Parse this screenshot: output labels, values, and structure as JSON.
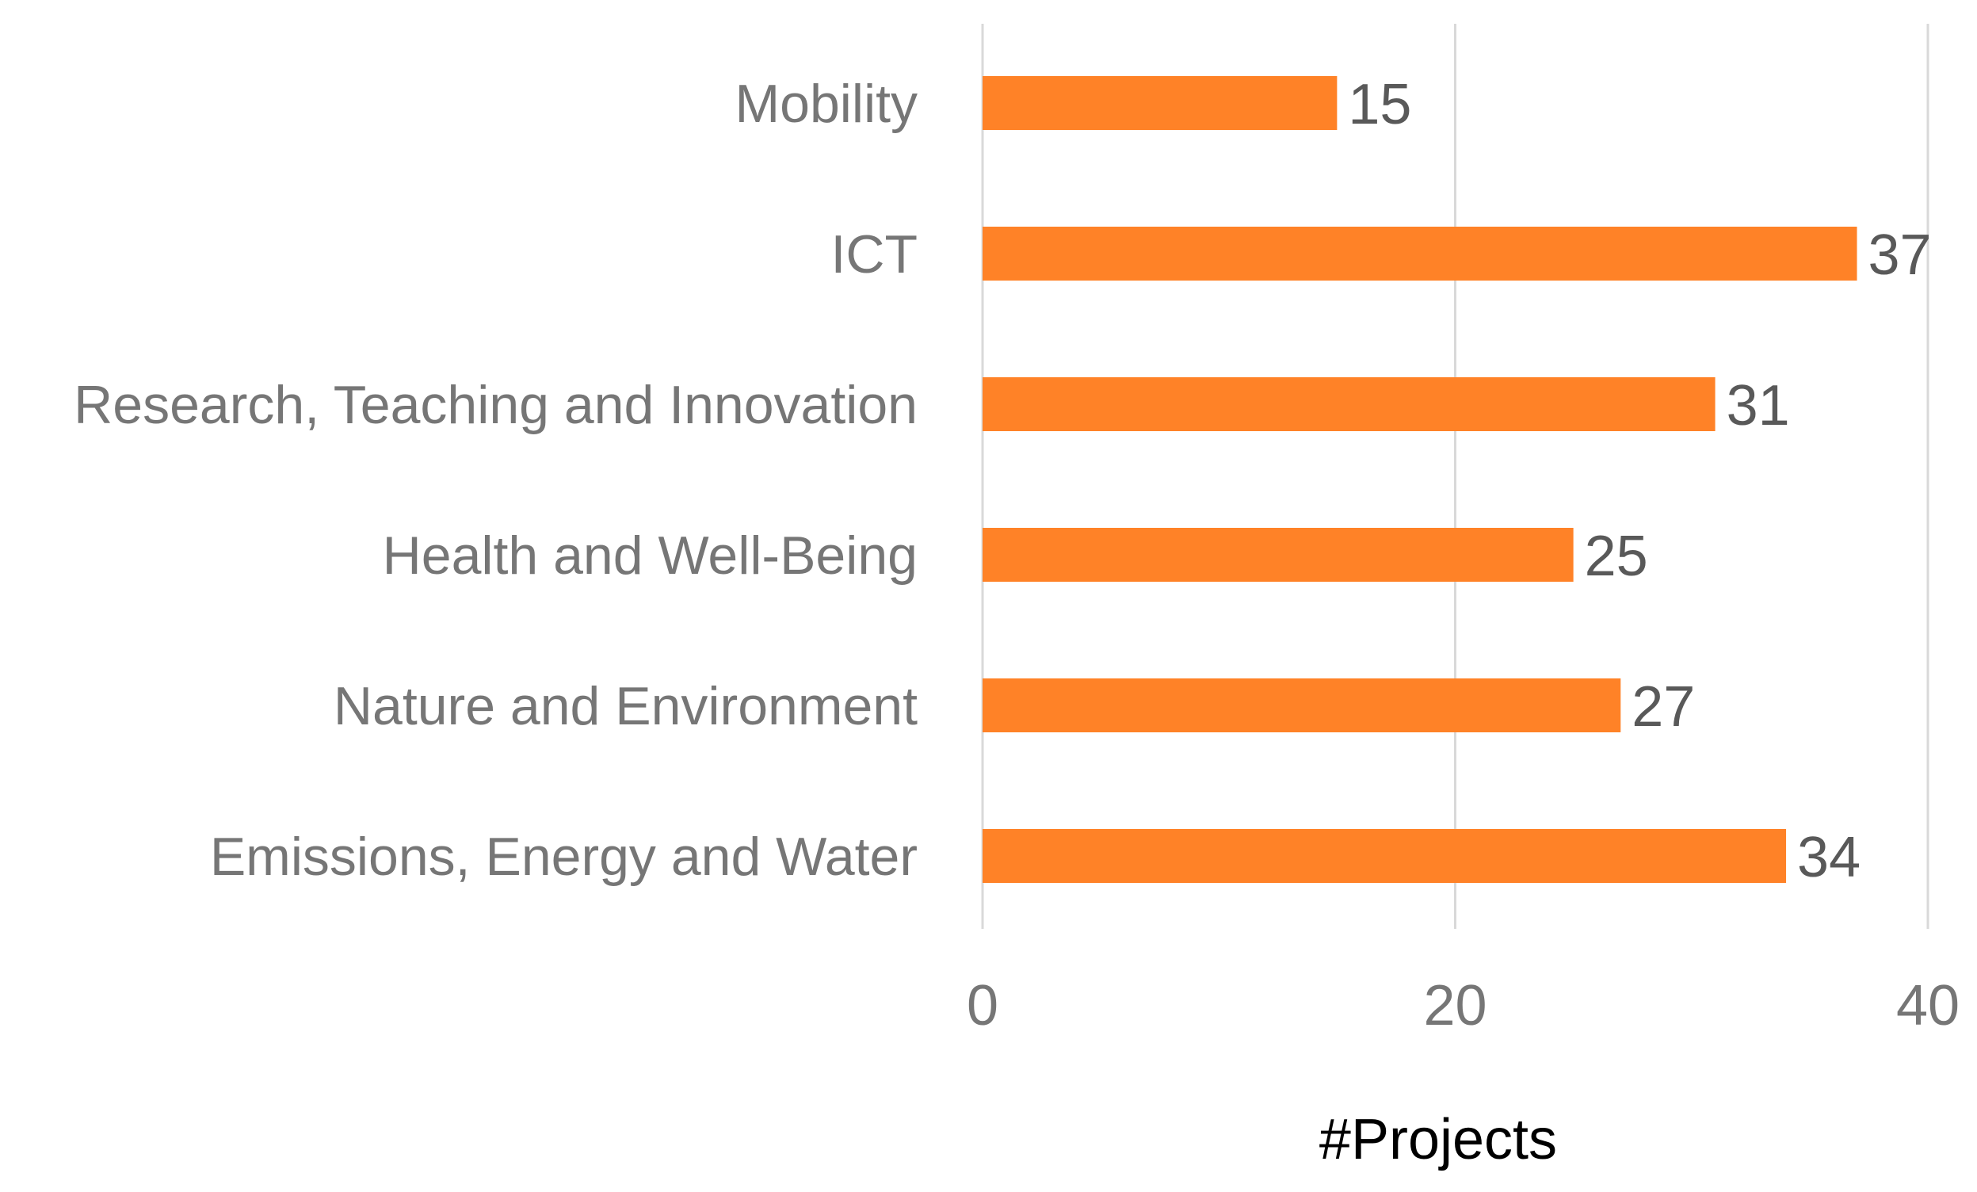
{
  "chart_data": {
    "type": "bar",
    "orientation": "horizontal",
    "categories": [
      "Mobility",
      "ICT",
      "Research, Teaching and Innovation",
      "Health and Well-Being",
      "Nature and Environment",
      "Emissions, Energy and Water"
    ],
    "values": [
      15,
      37,
      31,
      25,
      27,
      34
    ],
    "data_labels": [
      "15",
      "37",
      "31",
      "25",
      "27",
      "34"
    ],
    "xlabel": "#Projects",
    "ylabel": "",
    "title": "",
    "xlim": [
      0,
      40
    ],
    "xticks": [
      0,
      20,
      40
    ],
    "xtick_labels": [
      "0",
      "20",
      "40"
    ],
    "grid": true,
    "legend": "none",
    "bar_color": "#FF8227"
  }
}
